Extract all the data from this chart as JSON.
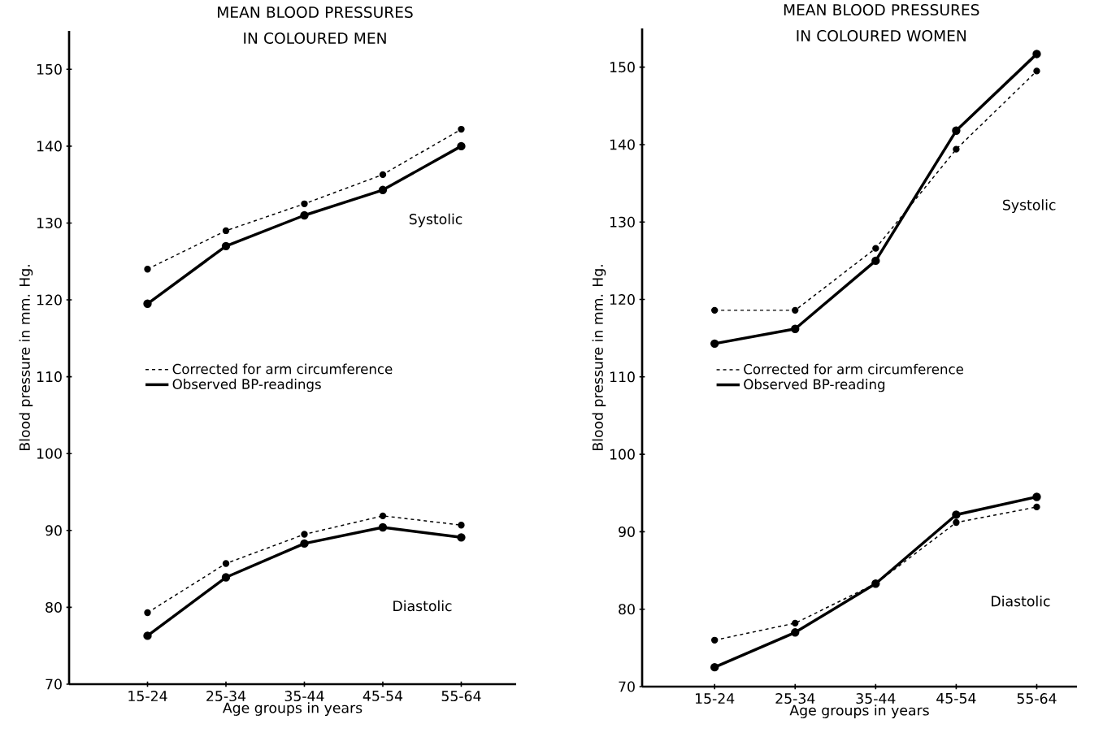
{
  "chart_data": [
    {
      "type": "line",
      "title": "MEAN BLOOD PRESSURES IN COLOURED MEN",
      "xlabel": "Age groups in years",
      "ylabel": "Blood pressure in mm. Hg.",
      "categories": [
        "15-24",
        "25-34",
        "35-44",
        "45-54",
        "55-64"
      ],
      "series": [
        {
          "name": "Corrected for arm circumference",
          "color": "#000000",
          "line_style": "dashed",
          "values": [
            124,
            129,
            132.5,
            136.3,
            142.2
          ]
        },
        {
          "name": "Observed BP-readings",
          "color": "#000000",
          "line_style": "solid",
          "values": [
            119.5,
            127,
            131,
            134.3,
            140
          ]
        },
        {
          "color": "#000000",
          "line_style": "dashed",
          "values": [
            79.3,
            85.7,
            89.5,
            91.9,
            90.7
          ]
        },
        {
          "color": "#000000",
          "line_style": "solid",
          "values": [
            76.3,
            83.9,
            88.3,
            90.4,
            89.1
          ]
        }
      ],
      "ylim": [
        70,
        155
      ],
      "yticks": [
        70,
        80,
        90,
        100,
        110,
        120,
        130,
        140,
        150
      ],
      "marker": "circle",
      "legend": "center",
      "annotations": [
        "Systolic",
        "Diastolic"
      ]
    },
    {
      "type": "line",
      "title": "MEAN BLOOD PRESSURES IN COLOURED WOMEN",
      "xlabel": "Age groups in years",
      "ylabel": "Blood pressure in mm. Hg.",
      "categories": [
        "15-24",
        "25-34",
        "35-44",
        "45-54",
        "55-64"
      ],
      "series": [
        {
          "name": "Corrected for arm circumference",
          "color": "#000000",
          "line_style": "dashed",
          "values": [
            118.6,
            118.6,
            126.6,
            139.4,
            149.5
          ]
        },
        {
          "name": "Observed BP-reading",
          "color": "#000000",
          "line_style": "solid",
          "values": [
            114.3,
            116.2,
            125,
            141.8,
            151.7
          ]
        },
        {
          "color": "#000000",
          "line_style": "dashed",
          "values": [
            76,
            78.2,
            83.3,
            91.2,
            93.2
          ]
        },
        {
          "color": "#000000",
          "line_style": "solid",
          "values": [
            72.5,
            77,
            83.3,
            92.2,
            94.5
          ]
        }
      ],
      "ylim": [
        70,
        155
      ],
      "yticks": [
        70,
        80,
        90,
        100,
        110,
        120,
        130,
        140,
        150
      ],
      "marker": "circle",
      "legend": "center",
      "annotations": [
        "Systolic",
        "Diastolic"
      ]
    }
  ]
}
